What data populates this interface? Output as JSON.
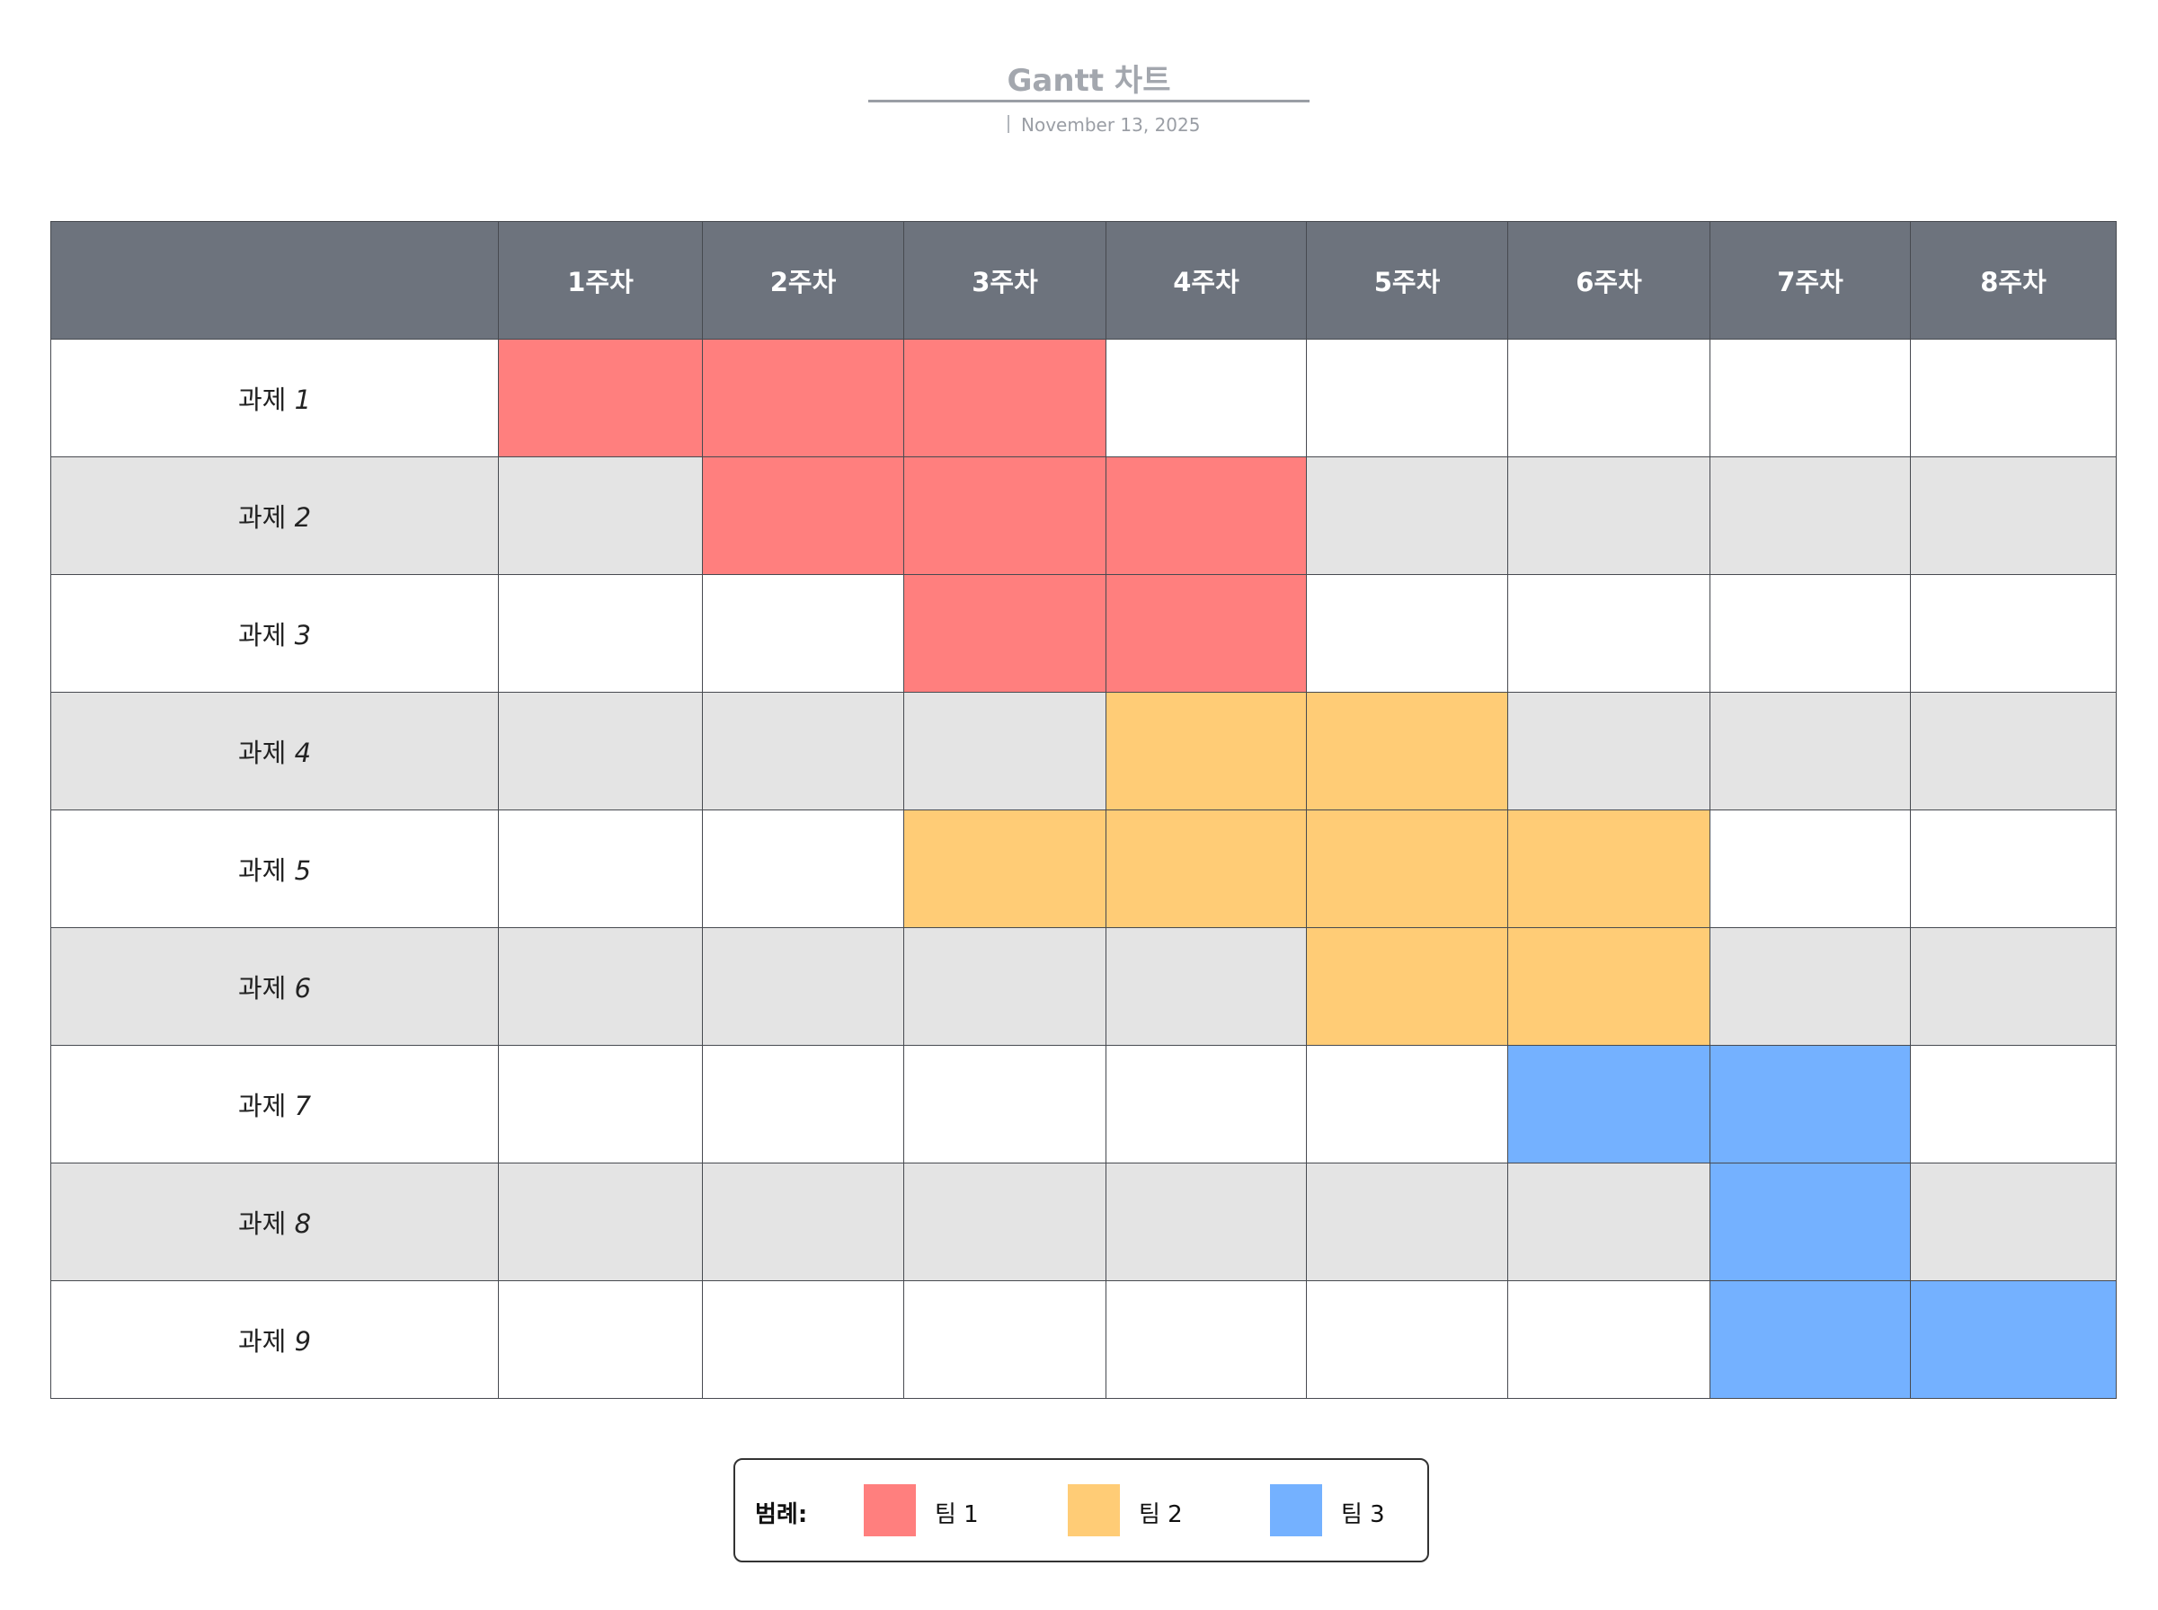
{
  "header": {
    "title": "Gantt 차트",
    "date": "November 13, 2025"
  },
  "chart_data": {
    "type": "gantt",
    "columns": [
      "1주차",
      "2주차",
      "3주차",
      "4주차",
      "5주차",
      "6주차",
      "7주차",
      "8주차"
    ],
    "tasks": [
      {
        "name": "과제",
        "num": "1",
        "team": "팀 1",
        "start": 1,
        "end": 3
      },
      {
        "name": "과제",
        "num": "2",
        "team": "팀 1",
        "start": 2,
        "end": 4
      },
      {
        "name": "과제",
        "num": "3",
        "team": "팀 1",
        "start": 3,
        "end": 4
      },
      {
        "name": "과제",
        "num": "4",
        "team": "팀 2",
        "start": 4,
        "end": 5
      },
      {
        "name": "과제",
        "num": "5",
        "team": "팀 2",
        "start": 3,
        "end": 6
      },
      {
        "name": "과제",
        "num": "6",
        "team": "팀 2",
        "start": 5,
        "end": 6
      },
      {
        "name": "과제",
        "num": "7",
        "team": "팀 3",
        "start": 6,
        "end": 7
      },
      {
        "name": "과제",
        "num": "8",
        "team": "팀 3",
        "start": 7,
        "end": 7
      },
      {
        "name": "과제",
        "num": "9",
        "team": "팀 3",
        "start": 7,
        "end": 8
      }
    ]
  },
  "legend": {
    "title": "범례:",
    "items": [
      {
        "label": "팀 1",
        "color": "#ff7f7e"
      },
      {
        "label": "팀 2",
        "color": "#ffcc76"
      },
      {
        "label": "팀 3",
        "color": "#74b1ff"
      }
    ]
  }
}
